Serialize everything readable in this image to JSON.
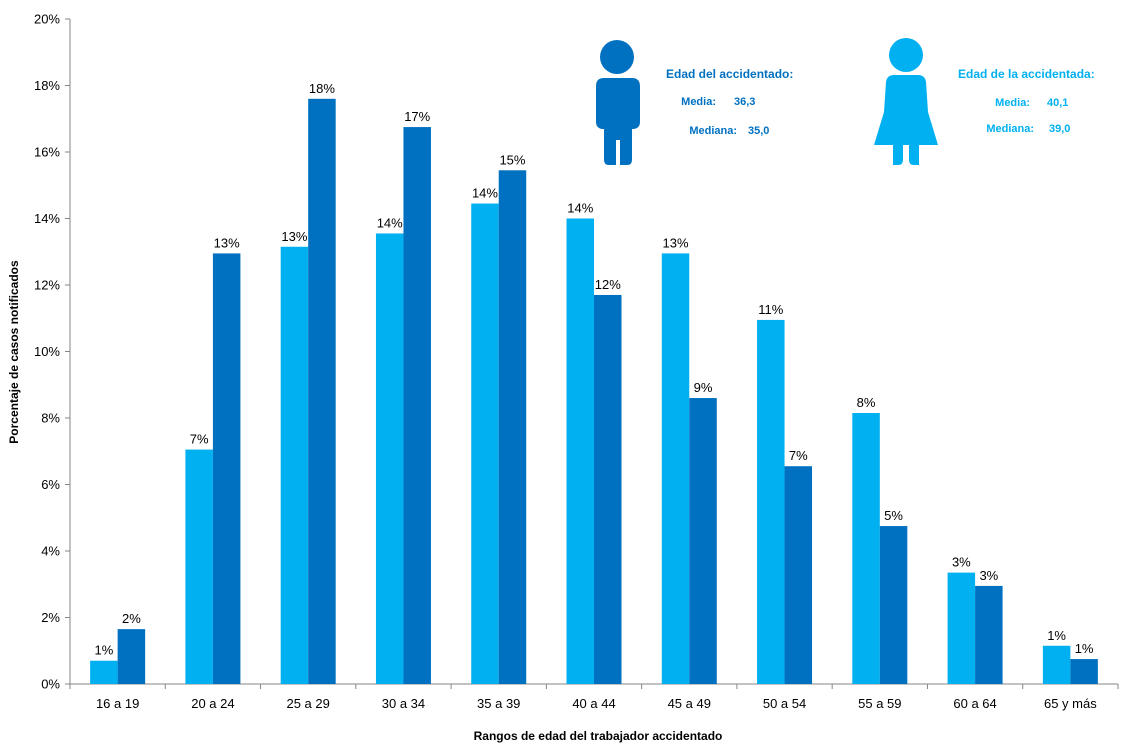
{
  "chart_data": {
    "type": "bar",
    "xlabel": "Rangos de edad del trabajador accidentado",
    "ylabel": "Porcentaje de casos notificados",
    "ylim": [
      0,
      20
    ],
    "yticks": [
      "0%",
      "2%",
      "4%",
      "6%",
      "8%",
      "10%",
      "12%",
      "14%",
      "16%",
      "18%",
      "20%"
    ],
    "grid": false,
    "categories": [
      "16 a 19",
      "20 a 24",
      "25 a 29",
      "30 a 34",
      "35 a 39",
      "40 a 44",
      "45 a 49",
      "50 a 54",
      "55 a 59",
      "60 a 64",
      "65 y más"
    ],
    "series": [
      {
        "color": "#00B0F0",
        "values": [
          0.7,
          7.05,
          13.15,
          13.55,
          14.45,
          14.0,
          12.95,
          10.95,
          8.15,
          3.35,
          1.15
        ],
        "labels": [
          "1%",
          "7%",
          "13%",
          "14%",
          "14%",
          "14%",
          "13%",
          "11%",
          "8%",
          "3%",
          "1%"
        ]
      },
      {
        "color": "#0070C0",
        "values": [
          1.65,
          12.95,
          17.6,
          16.75,
          15.45,
          11.7,
          8.6,
          6.55,
          4.75,
          2.95,
          0.75
        ],
        "labels": [
          "2%",
          "13%",
          "18%",
          "17%",
          "15%",
          "12%",
          "9%",
          "7%",
          "5%",
          "3%",
          "1%"
        ]
      }
    ]
  },
  "annotations": {
    "male": {
      "icon": "man-icon",
      "color": "#0070C0",
      "heading": "Edad del accidentado:",
      "mean_label": "Media:",
      "mean_value": "36,3",
      "median_label": "Mediana:",
      "median_value": "35,0"
    },
    "female": {
      "icon": "woman-icon",
      "color": "#00B0F0",
      "heading": "Edad de la accidentada:",
      "mean_label": "Media:",
      "mean_value": "40,1",
      "median_label": "Mediana:",
      "median_value": "39,0"
    }
  }
}
